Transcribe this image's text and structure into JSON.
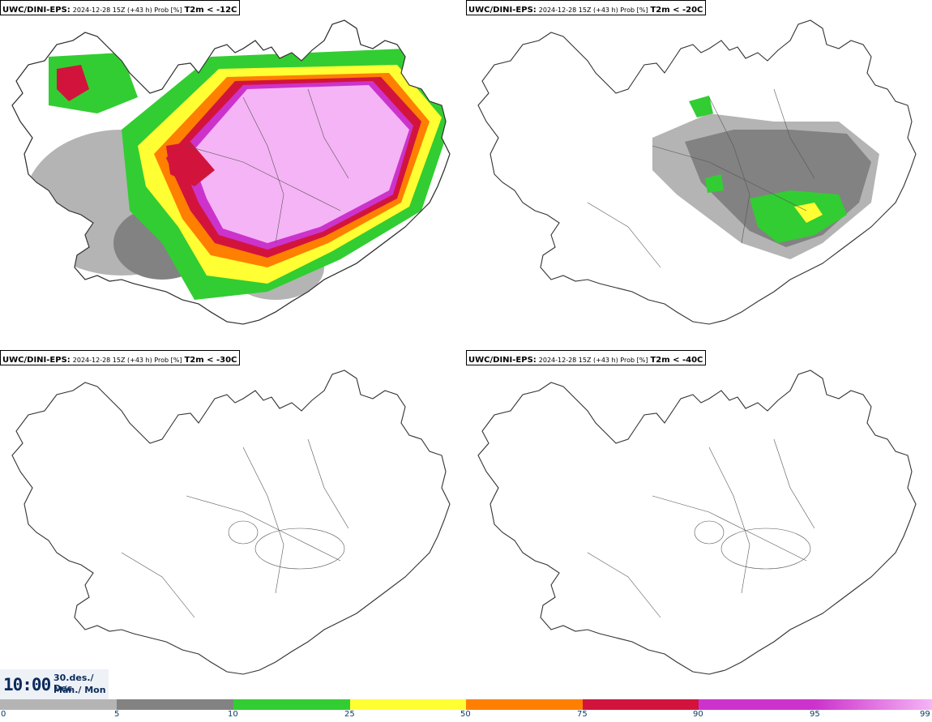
{
  "panels": [
    {
      "model": "UWC/DINI-EPS",
      "meta": "2024-12-28 15Z (+43 h) Prob [%]",
      "variable": "T2m < -12C"
    },
    {
      "model": "UWC/DINI-EPS",
      "meta": "2024-12-28 15Z (+43 h) Prob [%]",
      "variable": "T2m < -20C"
    },
    {
      "model": "UWC/DINI-EPS",
      "meta": "2024-12-28 15Z (+43 h) Prob [%]",
      "variable": "T2m < -30C"
    },
    {
      "model": "UWC/DINI-EPS",
      "meta": "2024-12-28 15Z (+43 h) Prob [%]",
      "variable": "T2m < -40C"
    }
  ],
  "valid_time": {
    "time": "10:00",
    "date_line1": "30.des./ Dec",
    "date_line2": "Mán./ Mon"
  },
  "colorbar": {
    "colors": [
      "#ffffff",
      "#b4b4b4",
      "#828282",
      "#32cd32",
      "#ffff33",
      "#ff7f00",
      "#d2143c",
      "#cc33cc",
      "#f5b4f5"
    ],
    "labels": [
      "0",
      "5",
      "10",
      "25",
      "50",
      "75",
      "90",
      "95",
      "99"
    ]
  },
  "colors": {
    "coast": "#333333",
    "text": "#0b3b66"
  }
}
